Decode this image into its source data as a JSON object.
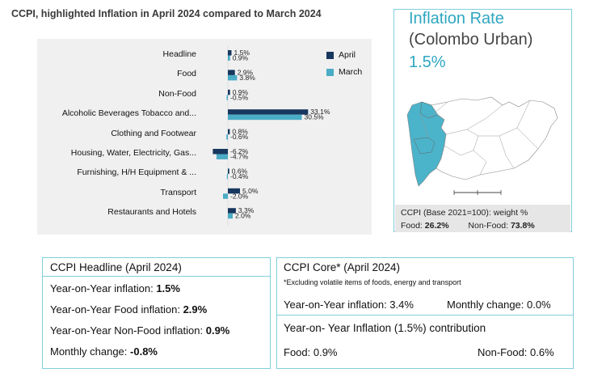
{
  "chart_data": {
    "type": "bar",
    "title": "CCPI, highlighted Inflation in April 2024 compared to March 2024",
    "categories": [
      "Headline",
      "Food",
      "Non-Food",
      "Alcoholic Beverages Tobacco and...",
      "Clothing and Footwear",
      "Housing, Water, Electricity, Gas...",
      "Furnishing, H/H Equipment & ...",
      "Transport",
      "Restaurants and Hotels"
    ],
    "series": [
      {
        "name": "April",
        "values": [
          1.5,
          2.9,
          0.9,
          33.1,
          0.8,
          -6.2,
          0.6,
          5.0,
          3.3
        ],
        "labels": [
          "1.5%",
          "2.9%",
          "0.9%",
          "33.1%",
          "0.8%",
          "-6.2%",
          "0.6%",
          "5.0%",
          "3.3%"
        ],
        "color": "#17375e"
      },
      {
        "name": "March",
        "values": [
          0.9,
          3.8,
          -0.5,
          30.5,
          -0.6,
          -4.7,
          -0.4,
          -2.0,
          2.0
        ],
        "labels": [
          "0.9%",
          "3.8%",
          "-0.5%",
          "30.5%",
          "-0.6%",
          "-4.7%",
          "-0.4%",
          "-2.0%",
          "2.0%"
        ],
        "color": "#4bacc6"
      }
    ],
    "orientation": "horizontal",
    "legend_position": "top-right",
    "grid": false
  },
  "map_panel": {
    "title": "Inflation Rate",
    "subtitle": "(Colombo Urban)",
    "value": "1.5%",
    "weight_title": "CCPI (Base 2021=100): weight %",
    "food_label": "Food:",
    "food_value": "26.2%",
    "nonfood_label": "Non-Food:",
    "nonfood_value": "73.8%"
  },
  "headline_box": {
    "title": "CCPI Headline (April 2024)",
    "rows": [
      {
        "label": "Year-on-Year inflation:",
        "value": "1.5%"
      },
      {
        "label": "Year-on-Year Food inflation:",
        "value": "2.9%"
      },
      {
        "label": "Year-on-Year Non-Food inflation:",
        "value": "0.9%"
      },
      {
        "label": "Monthly change:",
        "value": "-0.8%"
      }
    ]
  },
  "core_box": {
    "title": "CCPI Core* (April 2024)",
    "note": "*Excluding volatile items of foods, energy and transport",
    "yoy": "Year-on-Year inflation: 3.4%",
    "monthly": "Monthly change: 0.0%"
  },
  "contribution_box": {
    "title": "Year-on- Year Inflation (1.5%) contribution",
    "food": "Food: 0.9%",
    "nonfood": "Non-Food: 0.6%"
  },
  "colors": {
    "april": "#17375e",
    "march": "#4bacc6",
    "accent": "#2ea7c1",
    "border": "#7fcfdc"
  }
}
